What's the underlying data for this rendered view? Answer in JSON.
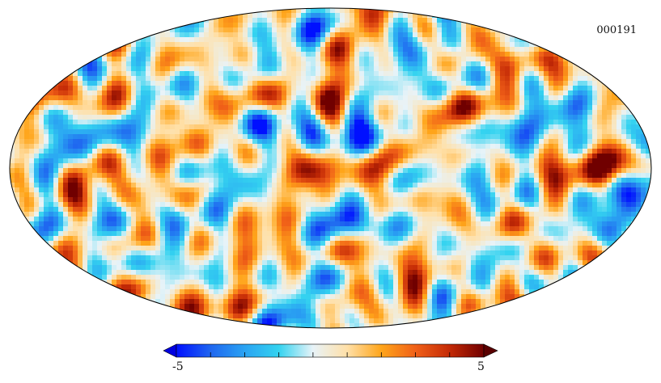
{
  "map": {
    "id_label": "000191",
    "projection": "mollweide",
    "background": "#ffffff",
    "outline_color": "#000000"
  },
  "colorbar": {
    "min_label": "-5",
    "max_label": "5",
    "min": -5,
    "max": 5,
    "stops": [
      "#0010ff",
      "#1f66f0",
      "#2aa3f2",
      "#34d3f0",
      "#e8f3f8",
      "#ffe0a8",
      "#ffa51a",
      "#f06018",
      "#c42a06",
      "#700000"
    ],
    "under_color": "#0000e0",
    "over_color": "#5a0000",
    "tick_count": 9
  }
}
